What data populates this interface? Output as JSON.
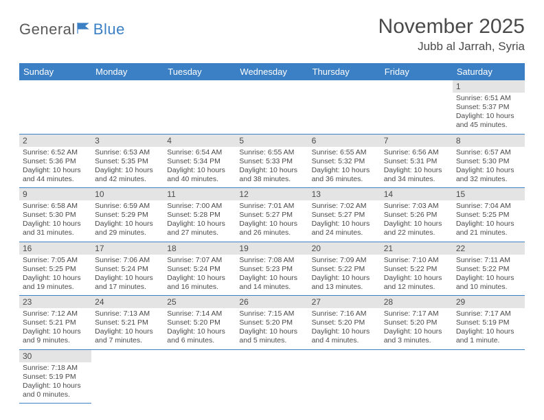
{
  "brand": {
    "part1": "General",
    "part2": "Blue"
  },
  "title": "November 2025",
  "location": "Jubb al Jarrah, Syria",
  "colors": {
    "header_bg": "#3b7fc4",
    "header_text": "#ffffff",
    "daynum_bg": "#e4e4e4",
    "text": "#4a4a4a",
    "rule": "#3b7fc4"
  },
  "daynames": [
    "Sunday",
    "Monday",
    "Tuesday",
    "Wednesday",
    "Thursday",
    "Friday",
    "Saturday"
  ],
  "weeks": [
    [
      null,
      null,
      null,
      null,
      null,
      null,
      {
        "n": "1",
        "sr": "6:51 AM",
        "ss": "5:37 PM",
        "dl": "10 hours and 45 minutes."
      }
    ],
    [
      {
        "n": "2",
        "sr": "6:52 AM",
        "ss": "5:36 PM",
        "dl": "10 hours and 44 minutes."
      },
      {
        "n": "3",
        "sr": "6:53 AM",
        "ss": "5:35 PM",
        "dl": "10 hours and 42 minutes."
      },
      {
        "n": "4",
        "sr": "6:54 AM",
        "ss": "5:34 PM",
        "dl": "10 hours and 40 minutes."
      },
      {
        "n": "5",
        "sr": "6:55 AM",
        "ss": "5:33 PM",
        "dl": "10 hours and 38 minutes."
      },
      {
        "n": "6",
        "sr": "6:55 AM",
        "ss": "5:32 PM",
        "dl": "10 hours and 36 minutes."
      },
      {
        "n": "7",
        "sr": "6:56 AM",
        "ss": "5:31 PM",
        "dl": "10 hours and 34 minutes."
      },
      {
        "n": "8",
        "sr": "6:57 AM",
        "ss": "5:30 PM",
        "dl": "10 hours and 32 minutes."
      }
    ],
    [
      {
        "n": "9",
        "sr": "6:58 AM",
        "ss": "5:30 PM",
        "dl": "10 hours and 31 minutes."
      },
      {
        "n": "10",
        "sr": "6:59 AM",
        "ss": "5:29 PM",
        "dl": "10 hours and 29 minutes."
      },
      {
        "n": "11",
        "sr": "7:00 AM",
        "ss": "5:28 PM",
        "dl": "10 hours and 27 minutes."
      },
      {
        "n": "12",
        "sr": "7:01 AM",
        "ss": "5:27 PM",
        "dl": "10 hours and 26 minutes."
      },
      {
        "n": "13",
        "sr": "7:02 AM",
        "ss": "5:27 PM",
        "dl": "10 hours and 24 minutes."
      },
      {
        "n": "14",
        "sr": "7:03 AM",
        "ss": "5:26 PM",
        "dl": "10 hours and 22 minutes."
      },
      {
        "n": "15",
        "sr": "7:04 AM",
        "ss": "5:25 PM",
        "dl": "10 hours and 21 minutes."
      }
    ],
    [
      {
        "n": "16",
        "sr": "7:05 AM",
        "ss": "5:25 PM",
        "dl": "10 hours and 19 minutes."
      },
      {
        "n": "17",
        "sr": "7:06 AM",
        "ss": "5:24 PM",
        "dl": "10 hours and 17 minutes."
      },
      {
        "n": "18",
        "sr": "7:07 AM",
        "ss": "5:24 PM",
        "dl": "10 hours and 16 minutes."
      },
      {
        "n": "19",
        "sr": "7:08 AM",
        "ss": "5:23 PM",
        "dl": "10 hours and 14 minutes."
      },
      {
        "n": "20",
        "sr": "7:09 AM",
        "ss": "5:22 PM",
        "dl": "10 hours and 13 minutes."
      },
      {
        "n": "21",
        "sr": "7:10 AM",
        "ss": "5:22 PM",
        "dl": "10 hours and 12 minutes."
      },
      {
        "n": "22",
        "sr": "7:11 AM",
        "ss": "5:22 PM",
        "dl": "10 hours and 10 minutes."
      }
    ],
    [
      {
        "n": "23",
        "sr": "7:12 AM",
        "ss": "5:21 PM",
        "dl": "10 hours and 9 minutes."
      },
      {
        "n": "24",
        "sr": "7:13 AM",
        "ss": "5:21 PM",
        "dl": "10 hours and 7 minutes."
      },
      {
        "n": "25",
        "sr": "7:14 AM",
        "ss": "5:20 PM",
        "dl": "10 hours and 6 minutes."
      },
      {
        "n": "26",
        "sr": "7:15 AM",
        "ss": "5:20 PM",
        "dl": "10 hours and 5 minutes."
      },
      {
        "n": "27",
        "sr": "7:16 AM",
        "ss": "5:20 PM",
        "dl": "10 hours and 4 minutes."
      },
      {
        "n": "28",
        "sr": "7:17 AM",
        "ss": "5:20 PM",
        "dl": "10 hours and 3 minutes."
      },
      {
        "n": "29",
        "sr": "7:17 AM",
        "ss": "5:19 PM",
        "dl": "10 hours and 1 minute."
      }
    ],
    [
      {
        "n": "30",
        "sr": "7:18 AM",
        "ss": "5:19 PM",
        "dl": "10 hours and 0 minutes."
      },
      null,
      null,
      null,
      null,
      null,
      null
    ]
  ],
  "labels": {
    "sunrise": "Sunrise:",
    "sunset": "Sunset:",
    "daylight": "Daylight:"
  }
}
